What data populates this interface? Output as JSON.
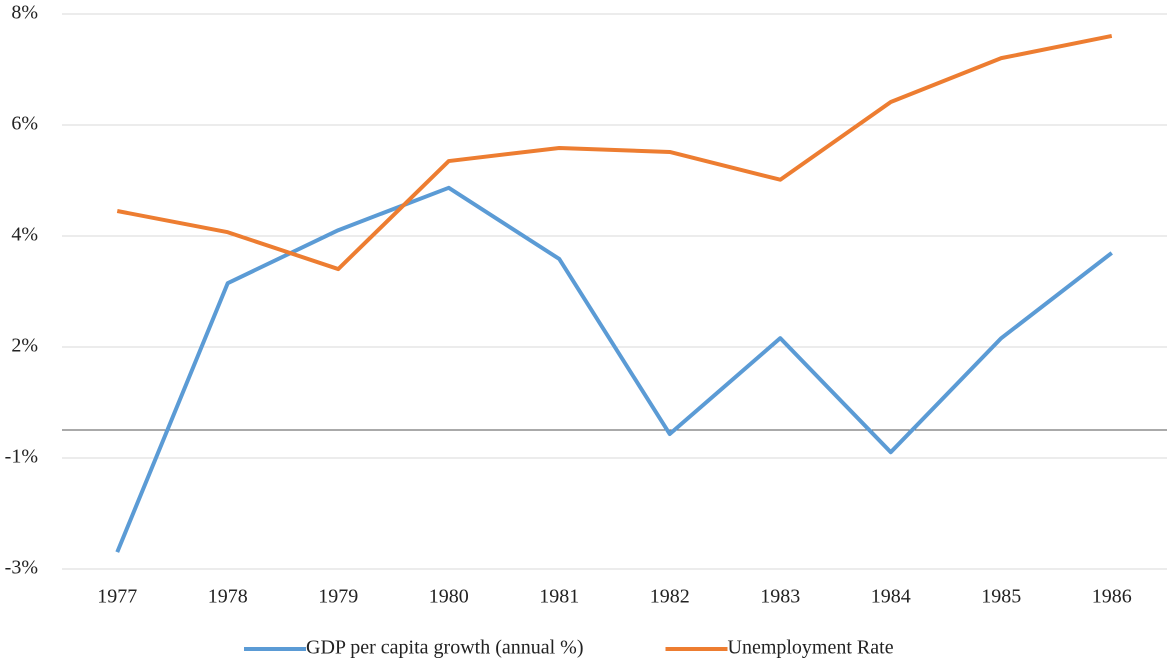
{
  "chart_data": {
    "type": "line",
    "categories": [
      "1977",
      "1978",
      "1979",
      "1980",
      "1981",
      "1982",
      "1983",
      "1984",
      "1985",
      "1986"
    ],
    "series": [
      {
        "name": "GDP per capita growth (annual %)",
        "color": "#5b9bd5",
        "values": [
          -2.42,
          2.91,
          3.96,
          4.8,
          3.39,
          -0.08,
          1.82,
          -0.44,
          1.82,
          3.51
        ]
      },
      {
        "name": "Unemployment Rate",
        "color": "#ed7d31",
        "values": [
          4.34,
          3.92,
          3.19,
          5.33,
          5.59,
          5.51,
          4.96,
          6.5,
          7.37,
          7.81
        ]
      }
    ],
    "ylim": [
      -2.755,
      8.245
    ],
    "yticks": [
      {
        "value": -2.755,
        "label": "-3%"
      },
      {
        "value": -0.555,
        "label": "-1%"
      },
      {
        "value": 1.645,
        "label": "2%"
      },
      {
        "value": 3.845,
        "label": "4%"
      },
      {
        "value": 6.045,
        "label": "6%"
      },
      {
        "value": 8.245,
        "label": "8%"
      }
    ],
    "grid": true,
    "legend": "bottom"
  }
}
